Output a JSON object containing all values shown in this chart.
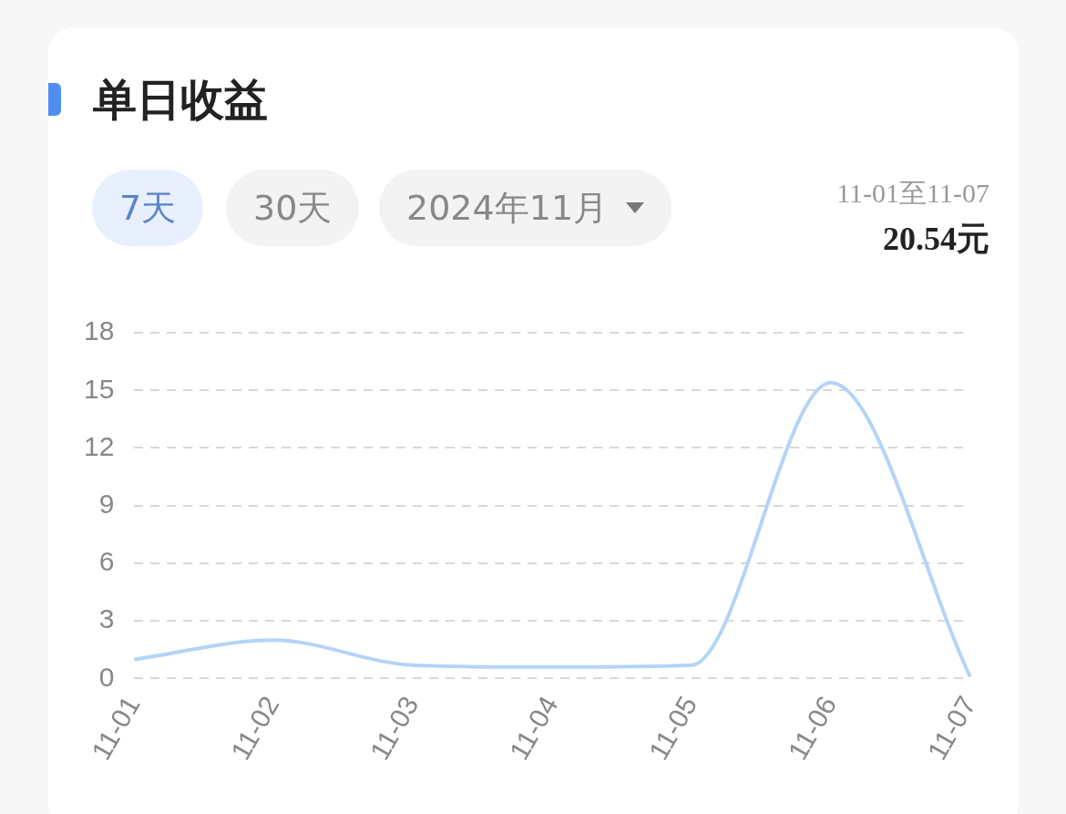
{
  "chart_data": {
    "type": "line",
    "title": "单日收益",
    "annotations": [
      "7天",
      "30天",
      "2024年11月",
      "11-01至11-07",
      "20.54元"
    ],
    "categories": [
      "11-01",
      "11-02",
      "11-03",
      "11-04",
      "11-05",
      "11-06",
      "11-07"
    ],
    "series": [
      {
        "color": "#b3d4f7",
        "values": [
          1.0,
          2.0,
          0.7,
          0.6,
          0.7,
          15.4,
          0.1
        ]
      }
    ],
    "ylim": [
      0,
      18
    ],
    "yticks": [
      0,
      3,
      6,
      9,
      12,
      15,
      18
    ],
    "grid": "y",
    "marker": "none",
    "line_style": "solid"
  }
}
